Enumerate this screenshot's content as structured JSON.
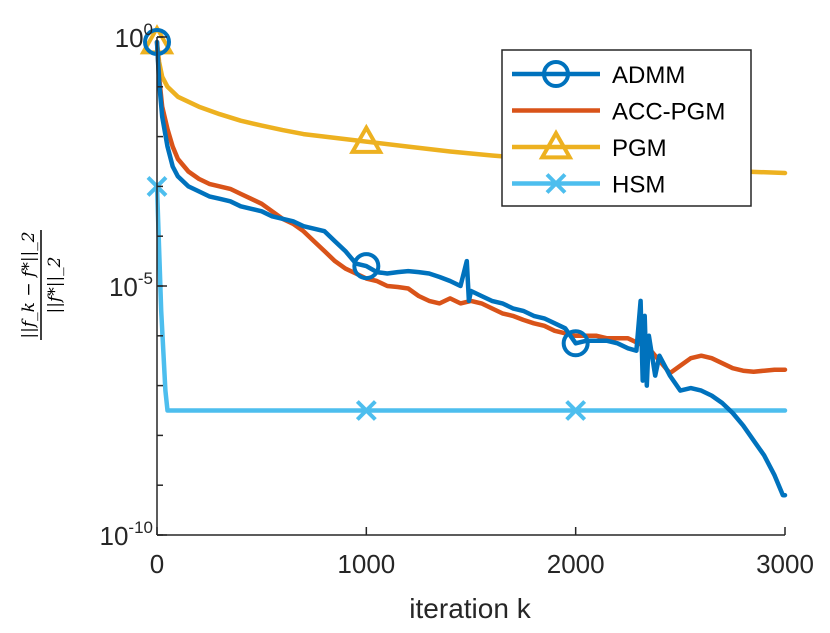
{
  "chart_data": {
    "type": "line",
    "title": "",
    "xlabel": "iteration k",
    "ylabel": {
      "numerator": "||f_k − f*||_2",
      "denominator": "||f*||_2"
    },
    "yscale": "log",
    "xlim": [
      0,
      3000
    ],
    "ylim_exponent": [
      -10,
      0
    ],
    "x_ticks": [
      "0",
      "1000",
      "2000",
      "3000"
    ],
    "y_ticks": [
      {
        "base": "10",
        "exp": "0",
        "value_exp": 0
      },
      {
        "base": "10",
        "exp": "-5",
        "value_exp": -5
      },
      {
        "base": "10",
        "exp": "-10",
        "value_exp": -10
      }
    ],
    "grid": false,
    "legend_position": "top-right",
    "series": [
      {
        "name": "ADMM",
        "color": "#0072BD",
        "marker": "circle",
        "marker_x": [
          0,
          1000,
          2000
        ],
        "points": [
          [
            0,
            -0.1
          ],
          [
            10,
            -0.9
          ],
          [
            25,
            -1.6
          ],
          [
            50,
            -2.2
          ],
          [
            75,
            -2.6
          ],
          [
            100,
            -2.8
          ],
          [
            150,
            -3.0
          ],
          [
            200,
            -3.1
          ],
          [
            250,
            -3.2
          ],
          [
            300,
            -3.25
          ],
          [
            350,
            -3.3
          ],
          [
            400,
            -3.4
          ],
          [
            450,
            -3.45
          ],
          [
            500,
            -3.5
          ],
          [
            550,
            -3.6
          ],
          [
            600,
            -3.65
          ],
          [
            650,
            -3.7
          ],
          [
            700,
            -3.8
          ],
          [
            750,
            -3.85
          ],
          [
            800,
            -3.9
          ],
          [
            850,
            -4.1
          ],
          [
            900,
            -4.3
          ],
          [
            950,
            -4.55
          ],
          [
            1000,
            -4.6
          ],
          [
            1050,
            -4.72
          ],
          [
            1100,
            -4.75
          ],
          [
            1150,
            -4.72
          ],
          [
            1200,
            -4.7
          ],
          [
            1250,
            -4.72
          ],
          [
            1300,
            -4.75
          ],
          [
            1350,
            -4.82
          ],
          [
            1400,
            -4.9
          ],
          [
            1450,
            -5.0
          ],
          [
            1480,
            -4.5
          ],
          [
            1490,
            -5.3
          ],
          [
            1500,
            -5.1
          ],
          [
            1550,
            -5.2
          ],
          [
            1600,
            -5.3
          ],
          [
            1650,
            -5.35
          ],
          [
            1700,
            -5.45
          ],
          [
            1750,
            -5.5
          ],
          [
            1800,
            -5.6
          ],
          [
            1850,
            -5.65
          ],
          [
            1900,
            -5.75
          ],
          [
            1950,
            -5.85
          ],
          [
            2000,
            -6.15
          ],
          [
            2050,
            -6.1
          ],
          [
            2100,
            -6.1
          ],
          [
            2150,
            -6.1
          ],
          [
            2200,
            -6.15
          ],
          [
            2250,
            -6.25
          ],
          [
            2290,
            -6.3
          ],
          [
            2310,
            -5.3
          ],
          [
            2320,
            -6.9
          ],
          [
            2330,
            -5.6
          ],
          [
            2340,
            -7.0
          ],
          [
            2350,
            -6.0
          ],
          [
            2380,
            -6.8
          ],
          [
            2400,
            -6.4
          ],
          [
            2450,
            -6.8
          ],
          [
            2500,
            -7.1
          ],
          [
            2550,
            -7.05
          ],
          [
            2600,
            -7.1
          ],
          [
            2650,
            -7.2
          ],
          [
            2700,
            -7.35
          ],
          [
            2750,
            -7.55
          ],
          [
            2800,
            -7.8
          ],
          [
            2850,
            -8.1
          ],
          [
            2900,
            -8.4
          ],
          [
            2950,
            -8.8
          ],
          [
            2990,
            -9.2
          ],
          [
            3000,
            -9.2
          ]
        ]
      },
      {
        "name": "ACC-PGM",
        "color": "#D95319",
        "marker": "none",
        "marker_x": [],
        "points": [
          [
            0,
            -0.1
          ],
          [
            10,
            -0.8
          ],
          [
            25,
            -1.4
          ],
          [
            50,
            -1.85
          ],
          [
            75,
            -2.2
          ],
          [
            100,
            -2.45
          ],
          [
            150,
            -2.7
          ],
          [
            200,
            -2.85
          ],
          [
            250,
            -2.95
          ],
          [
            300,
            -3.0
          ],
          [
            350,
            -3.05
          ],
          [
            400,
            -3.15
          ],
          [
            450,
            -3.25
          ],
          [
            500,
            -3.35
          ],
          [
            550,
            -3.5
          ],
          [
            600,
            -3.65
          ],
          [
            650,
            -3.75
          ],
          [
            700,
            -3.9
          ],
          [
            750,
            -4.1
          ],
          [
            800,
            -4.3
          ],
          [
            850,
            -4.5
          ],
          [
            900,
            -4.65
          ],
          [
            950,
            -4.75
          ],
          [
            1000,
            -4.85
          ],
          [
            1050,
            -4.9
          ],
          [
            1100,
            -5.0
          ],
          [
            1150,
            -5.02
          ],
          [
            1200,
            -5.05
          ],
          [
            1250,
            -5.2
          ],
          [
            1300,
            -5.3
          ],
          [
            1350,
            -5.35
          ],
          [
            1400,
            -5.25
          ],
          [
            1450,
            -5.35
          ],
          [
            1500,
            -5.3
          ],
          [
            1550,
            -5.35
          ],
          [
            1600,
            -5.45
          ],
          [
            1650,
            -5.55
          ],
          [
            1700,
            -5.6
          ],
          [
            1750,
            -5.68
          ],
          [
            1800,
            -5.75
          ],
          [
            1850,
            -5.8
          ],
          [
            1900,
            -5.9
          ],
          [
            1950,
            -5.95
          ],
          [
            2000,
            -6.0
          ],
          [
            2050,
            -6.0
          ],
          [
            2100,
            -6.0
          ],
          [
            2150,
            -6.05
          ],
          [
            2200,
            -6.05
          ],
          [
            2250,
            -6.05
          ],
          [
            2300,
            -6.15
          ],
          [
            2350,
            -6.25
          ],
          [
            2400,
            -6.5
          ],
          [
            2450,
            -6.75
          ],
          [
            2500,
            -6.6
          ],
          [
            2550,
            -6.45
          ],
          [
            2600,
            -6.4
          ],
          [
            2650,
            -6.45
          ],
          [
            2700,
            -6.55
          ],
          [
            2750,
            -6.65
          ],
          [
            2800,
            -6.7
          ],
          [
            2850,
            -6.72
          ],
          [
            2900,
            -6.7
          ],
          [
            2950,
            -6.68
          ],
          [
            3000,
            -6.68
          ]
        ]
      },
      {
        "name": "PGM",
        "color": "#EDB120",
        "marker": "triangle",
        "marker_x": [
          0,
          1000
        ],
        "points": [
          [
            0,
            -0.1
          ],
          [
            10,
            -0.5
          ],
          [
            25,
            -0.8
          ],
          [
            50,
            -1.0
          ],
          [
            100,
            -1.2
          ],
          [
            200,
            -1.4
          ],
          [
            300,
            -1.55
          ],
          [
            400,
            -1.68
          ],
          [
            500,
            -1.78
          ],
          [
            600,
            -1.87
          ],
          [
            700,
            -1.95
          ],
          [
            800,
            -2.0
          ],
          [
            900,
            -2.05
          ],
          [
            1000,
            -2.1
          ],
          [
            1200,
            -2.2
          ],
          [
            1400,
            -2.3
          ],
          [
            1600,
            -2.38
          ],
          [
            1800,
            -2.45
          ],
          [
            2000,
            -2.5
          ],
          [
            2200,
            -2.55
          ],
          [
            2400,
            -2.6
          ],
          [
            2600,
            -2.65
          ],
          [
            2800,
            -2.7
          ],
          [
            3000,
            -2.73
          ]
        ]
      },
      {
        "name": "HSM",
        "color": "#4DBEEE",
        "marker": "x",
        "marker_x": [
          0,
          1000,
          2000
        ],
        "points": [
          [
            0,
            -3.0
          ],
          [
            20,
            -5.5
          ],
          [
            40,
            -7.1
          ],
          [
            50,
            -7.5
          ],
          [
            3000,
            -7.5
          ]
        ]
      }
    ]
  }
}
